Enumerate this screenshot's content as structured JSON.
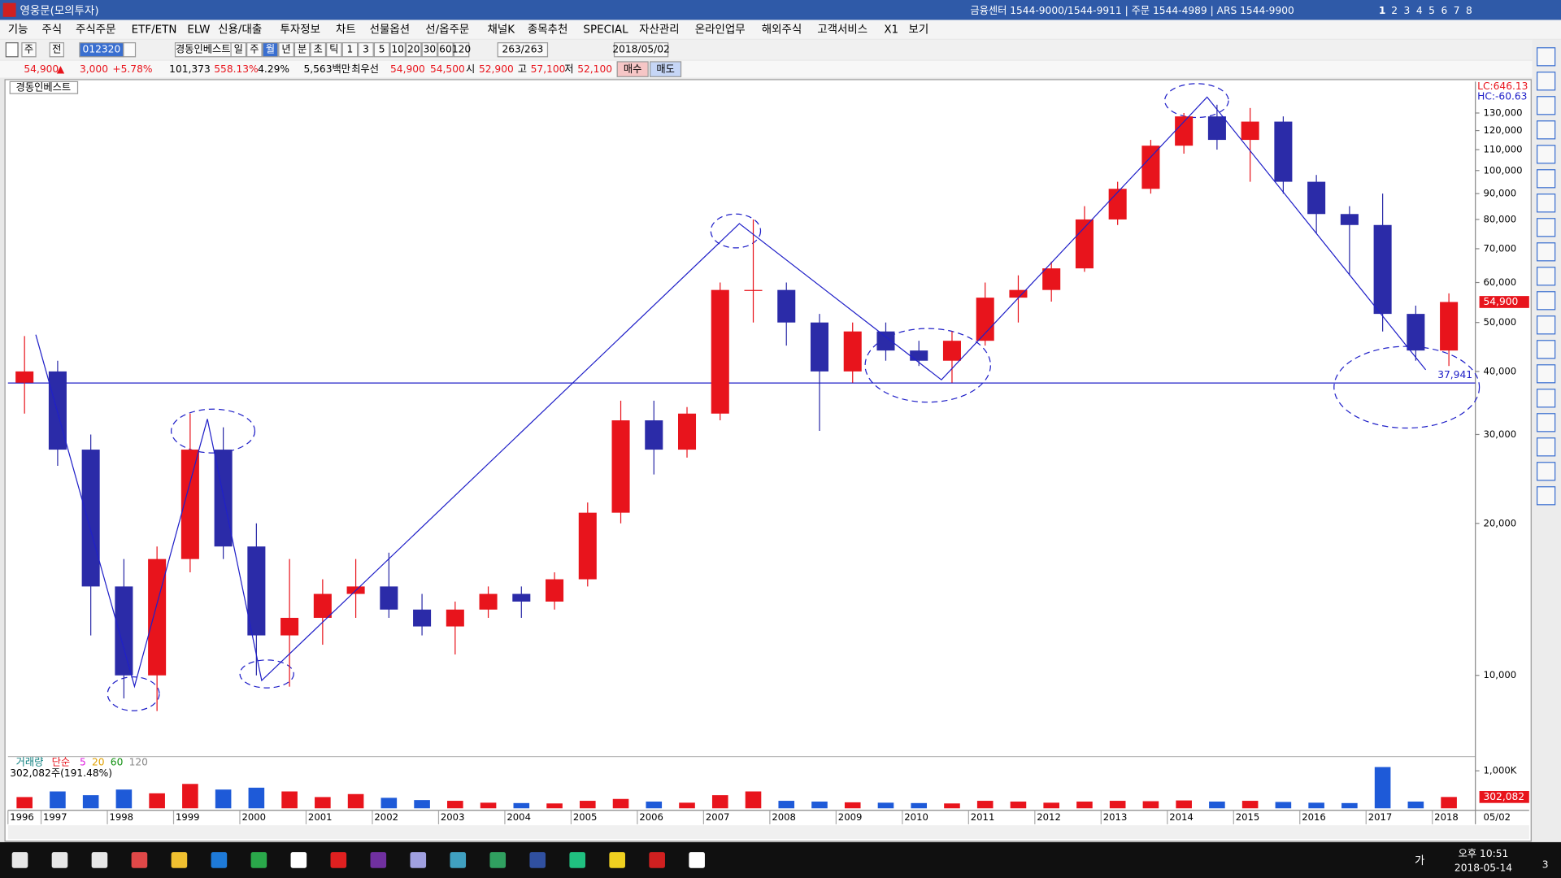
{
  "window": {
    "title": "영웅문(모의투자)",
    "contact": "금융센터 1544-9000/1544-9911 | 주문 1544-4989 | ARS 1544-9900",
    "screens": [
      "1",
      "2",
      "3",
      "4",
      "5",
      "6",
      "7",
      "8"
    ]
  },
  "menu": [
    "기능",
    "주식",
    "주식주문",
    "ETF/ETN",
    "ELW",
    "신용/대출",
    "투자정보",
    "차트",
    "선물옵션",
    "선/옵주문",
    "채널K",
    "종목추천",
    "SPECIAL",
    "자산관리",
    "온라인업무",
    "해외주식",
    "고객서비스",
    "X1",
    "보기"
  ],
  "toolbar": {
    "market": "주",
    "scope": "전",
    "code": "012320",
    "name": "경동인베스트",
    "periods": [
      "일",
      "주",
      "월",
      "년",
      "분",
      "초",
      "틱"
    ],
    "intervals": [
      "1",
      "3",
      "5",
      "10",
      "20",
      "30",
      "60",
      "120"
    ],
    "count": "263/263",
    "date": "2018/05/02"
  },
  "quote": {
    "price": "54,900",
    "arrow": "▲",
    "change": "3,000",
    "rate": "+5.78%",
    "volume": "101,373",
    "volume_ratio": "558.13%",
    "turnover_rate": "4.29%",
    "amount": "5,563백만",
    "best_label": "최우선",
    "ask": "54,900",
    "bid": "54,500",
    "open_label": "시",
    "open": "52,900",
    "high_label": "고",
    "high": "57,100",
    "low_label": "저",
    "low": "52,100",
    "buy": "매수",
    "sell": "매도"
  },
  "chart_data": [
    {
      "type": "candlestick",
      "title": "경동인베스트",
      "log_scale": true,
      "up_color": "#e8141c",
      "down_color": "#2b2ba8",
      "x": [
        1996.75,
        1997.25,
        1997.75,
        1998.25,
        1998.75,
        1999.25,
        1999.75,
        2000.25,
        2000.75,
        2001.25,
        2001.75,
        2002.25,
        2002.75,
        2003.25,
        2003.75,
        2004.25,
        2004.75,
        2005.25,
        2005.75,
        2006.25,
        2006.75,
        2007.25,
        2007.75,
        2008.25,
        2008.75,
        2009.25,
        2009.75,
        2010.25,
        2010.75,
        2011.25,
        2011.75,
        2012.25,
        2012.75,
        2013.25,
        2013.75,
        2014.25,
        2014.75,
        2015.25,
        2015.75,
        2016.25,
        2016.75,
        2017.25,
        2017.75,
        2018.25
      ],
      "open": [
        38000,
        40000,
        28000,
        15000,
        10000,
        17000,
        28000,
        18000,
        12000,
        13000,
        14500,
        15000,
        13500,
        12500,
        13500,
        14500,
        14000,
        15500,
        21000,
        32000,
        28000,
        33000,
        58000,
        58000,
        50000,
        40000,
        48000,
        44000,
        42000,
        46000,
        56000,
        58000,
        64000,
        80000,
        92000,
        112000,
        128000,
        115000,
        125000,
        95000,
        82000,
        78000,
        52000,
        44000
      ],
      "high": [
        47000,
        42000,
        30000,
        17000,
        18000,
        33000,
        31000,
        20000,
        17000,
        15500,
        17000,
        17500,
        14500,
        14000,
        15000,
        15000,
        16000,
        22000,
        35000,
        35000,
        34000,
        60000,
        80000,
        60000,
        52000,
        50000,
        50000,
        46000,
        48000,
        60000,
        62000,
        66000,
        85000,
        95000,
        115000,
        130000,
        135000,
        133000,
        128000,
        98000,
        85000,
        90000,
        54000,
        57100
      ],
      "low": [
        33000,
        26000,
        12000,
        9000,
        8500,
        16000,
        17000,
        10000,
        9500,
        11500,
        13000,
        13000,
        12000,
        11000,
        13000,
        13000,
        13500,
        15000,
        20000,
        25000,
        27000,
        32000,
        50000,
        45000,
        30500,
        38000,
        42000,
        41000,
        38000,
        45000,
        50000,
        55000,
        63000,
        78000,
        90000,
        108000,
        110000,
        95000,
        90000,
        75000,
        62000,
        48000,
        42000,
        41000
      ],
      "close": [
        40000,
        28000,
        15000,
        10000,
        17000,
        28000,
        18000,
        12000,
        13000,
        14500,
        15000,
        13500,
        12500,
        13500,
        14500,
        14000,
        15500,
        21000,
        32000,
        28000,
        33000,
        58000,
        58000,
        50000,
        40000,
        48000,
        44000,
        42000,
        46000,
        56000,
        58000,
        64000,
        80000,
        92000,
        112000,
        128000,
        115000,
        125000,
        95000,
        82000,
        78000,
        52000,
        44000,
        54900
      ],
      "xlim": [
        1996.5,
        2018.65
      ],
      "xticks": [
        {
          "value": 1996.5,
          "label": "1996"
        },
        1997,
        1998,
        1999,
        2000,
        2001,
        2002,
        2003,
        2004,
        2005,
        2006,
        2007,
        2008,
        2009,
        2010,
        2011,
        2012,
        2013,
        2014,
        2015,
        2016,
        2017,
        2018
      ],
      "x_end_label": "05/02",
      "ylim": [
        7000,
        150000
      ],
      "yticks": [
        {
          "value": 10000,
          "label": "10,000"
        },
        {
          "value": 20000,
          "label": "20,000"
        },
        {
          "value": 30000,
          "label": "30,000"
        },
        {
          "value": 40000,
          "label": "40,000"
        },
        {
          "value": 50000,
          "label": "50,000"
        },
        {
          "value": 60000,
          "label": "60,000"
        },
        {
          "value": 70000,
          "label": "70,000"
        },
        {
          "value": 80000,
          "label": "80,000"
        },
        {
          "value": 90000,
          "label": "90,000"
        },
        {
          "value": 100000,
          "label": "100,000"
        },
        {
          "value": 110000,
          "label": "110,000"
        },
        {
          "value": 120000,
          "label": "120,000"
        },
        {
          "value": 130000,
          "label": "130,000"
        }
      ],
      "hline": {
        "value": 37941,
        "label": "37,941",
        "color": "#2020c8"
      },
      "trendline": {
        "color": "#2020c8",
        "x": [
          1996.92,
          1998.41,
          1999.51,
          2000.33,
          2007.54,
          2010.59,
          2014.6,
          2017.9
        ],
        "y": [
          47300,
          9510,
          32200,
          9770,
          78500,
          38500,
          139800,
          40300
        ]
      },
      "lc": "LC:646.13",
      "hc": "HC:-60.63",
      "last_price": {
        "value": 54900,
        "label": "54,900"
      }
    },
    {
      "type": "bar",
      "title": "거래량",
      "legend": [
        {
          "name": "단순",
          "color": "#e8141c"
        },
        {
          "name": "5",
          "color": "#e020e0"
        },
        {
          "name": "20",
          "color": "#e0a000"
        },
        {
          "name": "60",
          "color": "#109010"
        },
        {
          "name": "120",
          "color": "#888888"
        }
      ],
      "summary": "302,082주(191.48%)",
      "x": [
        1996.75,
        1997.25,
        1997.75,
        1998.25,
        1998.75,
        1999.25,
        1999.75,
        2000.25,
        2000.75,
        2001.25,
        2001.75,
        2002.25,
        2002.75,
        2003.25,
        2003.75,
        2004.25,
        2004.75,
        2005.25,
        2005.75,
        2006.25,
        2006.75,
        2007.25,
        2007.75,
        2008.25,
        2008.75,
        2009.25,
        2009.75,
        2010.25,
        2010.75,
        2011.25,
        2011.75,
        2012.25,
        2012.75,
        2013.25,
        2013.75,
        2014.25,
        2014.75,
        2015.25,
        2015.75,
        2016.25,
        2016.75,
        2017.25,
        2017.75,
        2018.25
      ],
      "values": [
        300000,
        450000,
        350000,
        500000,
        400000,
        650000,
        500000,
        550000,
        450000,
        300000,
        380000,
        280000,
        220000,
        200000,
        150000,
        140000,
        130000,
        200000,
        250000,
        180000,
        150000,
        350000,
        450000,
        200000,
        180000,
        160000,
        150000,
        140000,
        130000,
        200000,
        180000,
        150000,
        180000,
        200000,
        190000,
        210000,
        180000,
        200000,
        170000,
        150000,
        140000,
        1100000,
        180000,
        302082
      ],
      "ylim": [
        0,
        1300000
      ],
      "yticks": [
        {
          "value": 1000000,
          "label": "1,000K"
        }
      ],
      "last": {
        "value": 302082,
        "label": "302,082"
      }
    }
  ],
  "taskbar": {
    "time": "오후 10:51",
    "date": "2018-05-14",
    "ime": "가",
    "notifications": "3"
  }
}
